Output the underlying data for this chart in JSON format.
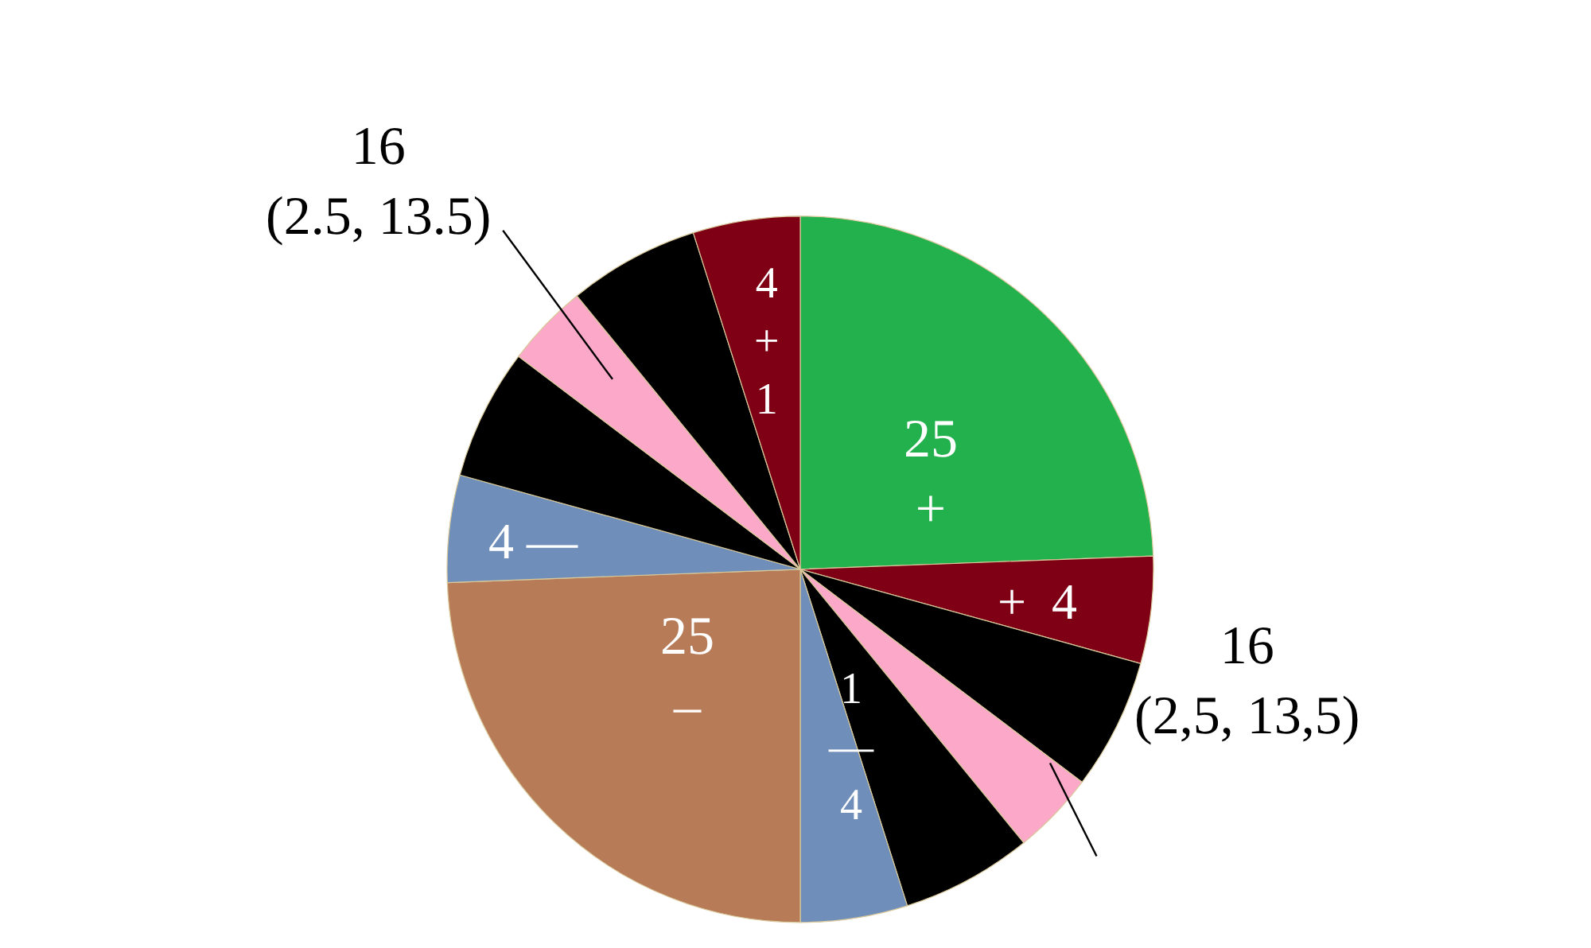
{
  "chart_data": {
    "type": "pie",
    "categories": [
      null,
      null,
      null,
      null,
      null,
      null,
      null,
      null,
      null,
      null,
      null,
      null
    ],
    "values": [
      24.4,
      4.9,
      6.0,
      3.8,
      6.0,
      4.9,
      24.4,
      4.9,
      6.0,
      3.8,
      6.0,
      4.9
    ],
    "colors": [
      "#22b14c",
      "#7f0015",
      "#000000",
      "#fca8c8",
      "#000000",
      "#6f8fba",
      "#b77b57",
      "#6f8fba",
      "#000000",
      "#fca8c8",
      "#000000",
      "#7f0015"
    ],
    "annotations": [
      "16\n(2.5, 13.5)",
      "16\n(2,5, 13,5)",
      "25\n+",
      "+  4",
      "1\n—\n4",
      "25\n–",
      "4 —",
      "4\n+\n1"
    ],
    "legend": false
  }
}
